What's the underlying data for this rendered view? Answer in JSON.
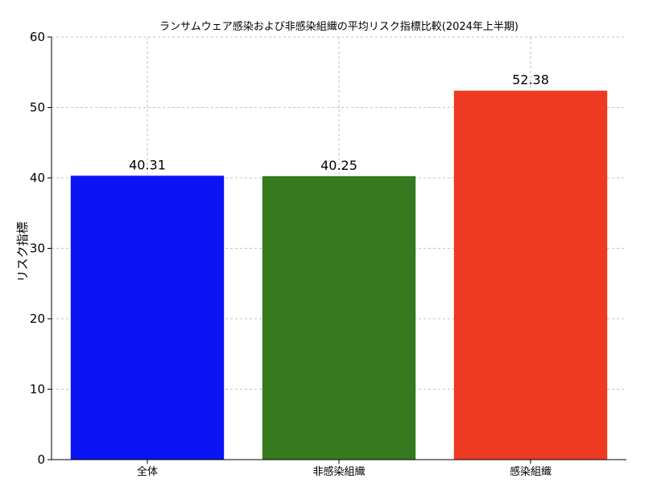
{
  "chart_data": {
    "type": "bar",
    "title": "ランサムウェア感染および非感染組織の平均リスク指標比較(2024年上半期)",
    "xlabel": "",
    "ylabel": "リスク指標",
    "categories": [
      "全体",
      "非感染組織",
      "感染組織"
    ],
    "values": [
      40.31,
      40.25,
      52.38
    ],
    "data_labels": [
      "40.31",
      "40.25",
      "52.38"
    ],
    "colors": [
      "#0a14f5",
      "#357a1f",
      "#ee3a20"
    ],
    "ylim": [
      0,
      60
    ],
    "yticks": [
      0,
      10,
      20,
      30,
      40,
      50,
      60
    ],
    "ytick_labels": [
      "0",
      "10",
      "20",
      "30",
      "40",
      "50",
      "60"
    ],
    "grid": true,
    "legend": "none"
  }
}
